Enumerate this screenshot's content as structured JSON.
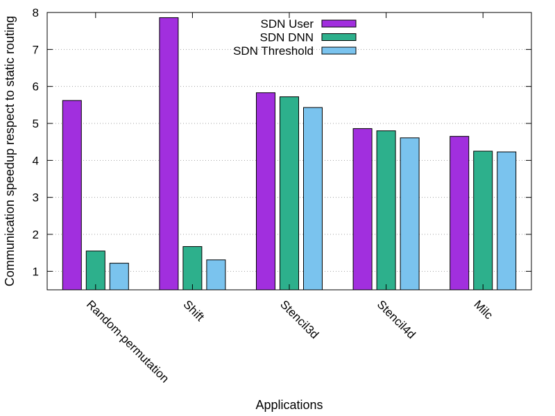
{
  "chart_data": {
    "type": "bar",
    "title": "",
    "xlabel": "Applications",
    "ylabel": "Communication speedup respect to static routing",
    "ylim": [
      0.5,
      8
    ],
    "yticks": [
      1,
      2,
      3,
      4,
      5,
      6,
      7,
      8
    ],
    "grid": "horizontal-dotted",
    "legend_position": "top-center",
    "categories": [
      "Random-permutation",
      "Shift",
      "Stencil3d",
      "Stencil4d",
      "Milc"
    ],
    "series": [
      {
        "name": "SDN User",
        "color": "#a12fde",
        "values": [
          5.62,
          7.86,
          5.83,
          4.86,
          4.65
        ]
      },
      {
        "name": "SDN DNN",
        "color": "#2db08c",
        "values": [
          1.55,
          1.67,
          5.72,
          4.8,
          4.25
        ]
      },
      {
        "name": "SDN Threshold",
        "color": "#7ac3ee",
        "values": [
          1.22,
          1.31,
          5.43,
          4.61,
          4.23
        ]
      }
    ]
  }
}
